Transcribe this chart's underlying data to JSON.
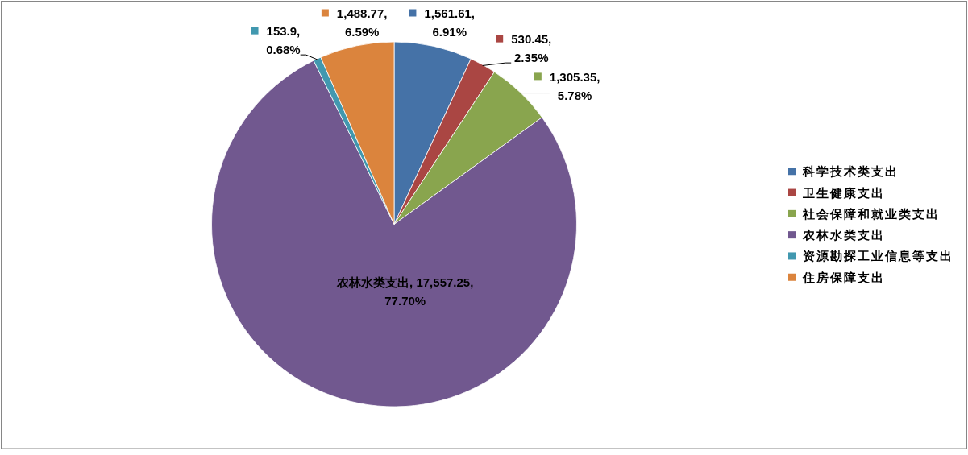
{
  "chart_data": {
    "type": "pie",
    "categories": [
      "科学技术类支出",
      "卫生健康支出",
      "社会保障和就业类支出",
      "农林水类支出",
      "资源勘探工业信息等支出",
      "住房保障支出"
    ],
    "values": [
      1561.61,
      530.45,
      1305.35,
      17557.25,
      153.9,
      1488.77
    ],
    "colors": [
      "#4572a7",
      "#aa4643",
      "#89a54e",
      "#71588f",
      "#4198af",
      "#db843d"
    ],
    "value_labels": [
      "1,561.61, 6.91%",
      "530.45, 2.35%",
      "1,305.35, 5.78%",
      "农林水类支出, 17,557.25, 77.70%",
      "153.9, 0.68%",
      "1,488.77, 6.59%"
    ],
    "legend": "right"
  }
}
